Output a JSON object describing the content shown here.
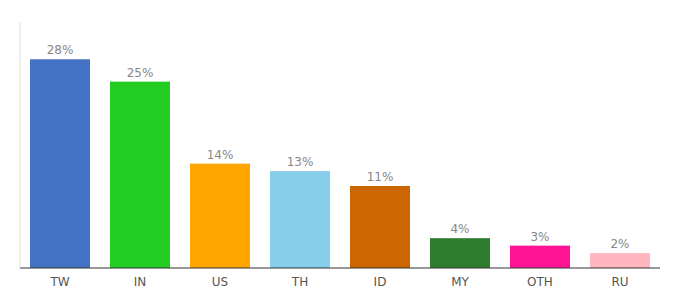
{
  "chart_data": {
    "type": "bar",
    "categories": [
      "TW",
      "IN",
      "US",
      "TH",
      "ID",
      "MY",
      "OTH",
      "RU"
    ],
    "values": [
      28,
      25,
      14,
      13,
      11,
      4,
      3,
      2
    ],
    "value_labels": [
      "28%",
      "25%",
      "14%",
      "13%",
      "11%",
      "4%",
      "3%",
      "2%"
    ],
    "colors": [
      "#4472C4",
      "#22CC22",
      "#FFA500",
      "#87CEEB",
      "#CC6600",
      "#2E7D2E",
      "#FF1493",
      "#FFB6C1"
    ],
    "ylim": [
      0,
      33
    ],
    "grid": false,
    "data_labels": true,
    "tick_labels": "x"
  }
}
